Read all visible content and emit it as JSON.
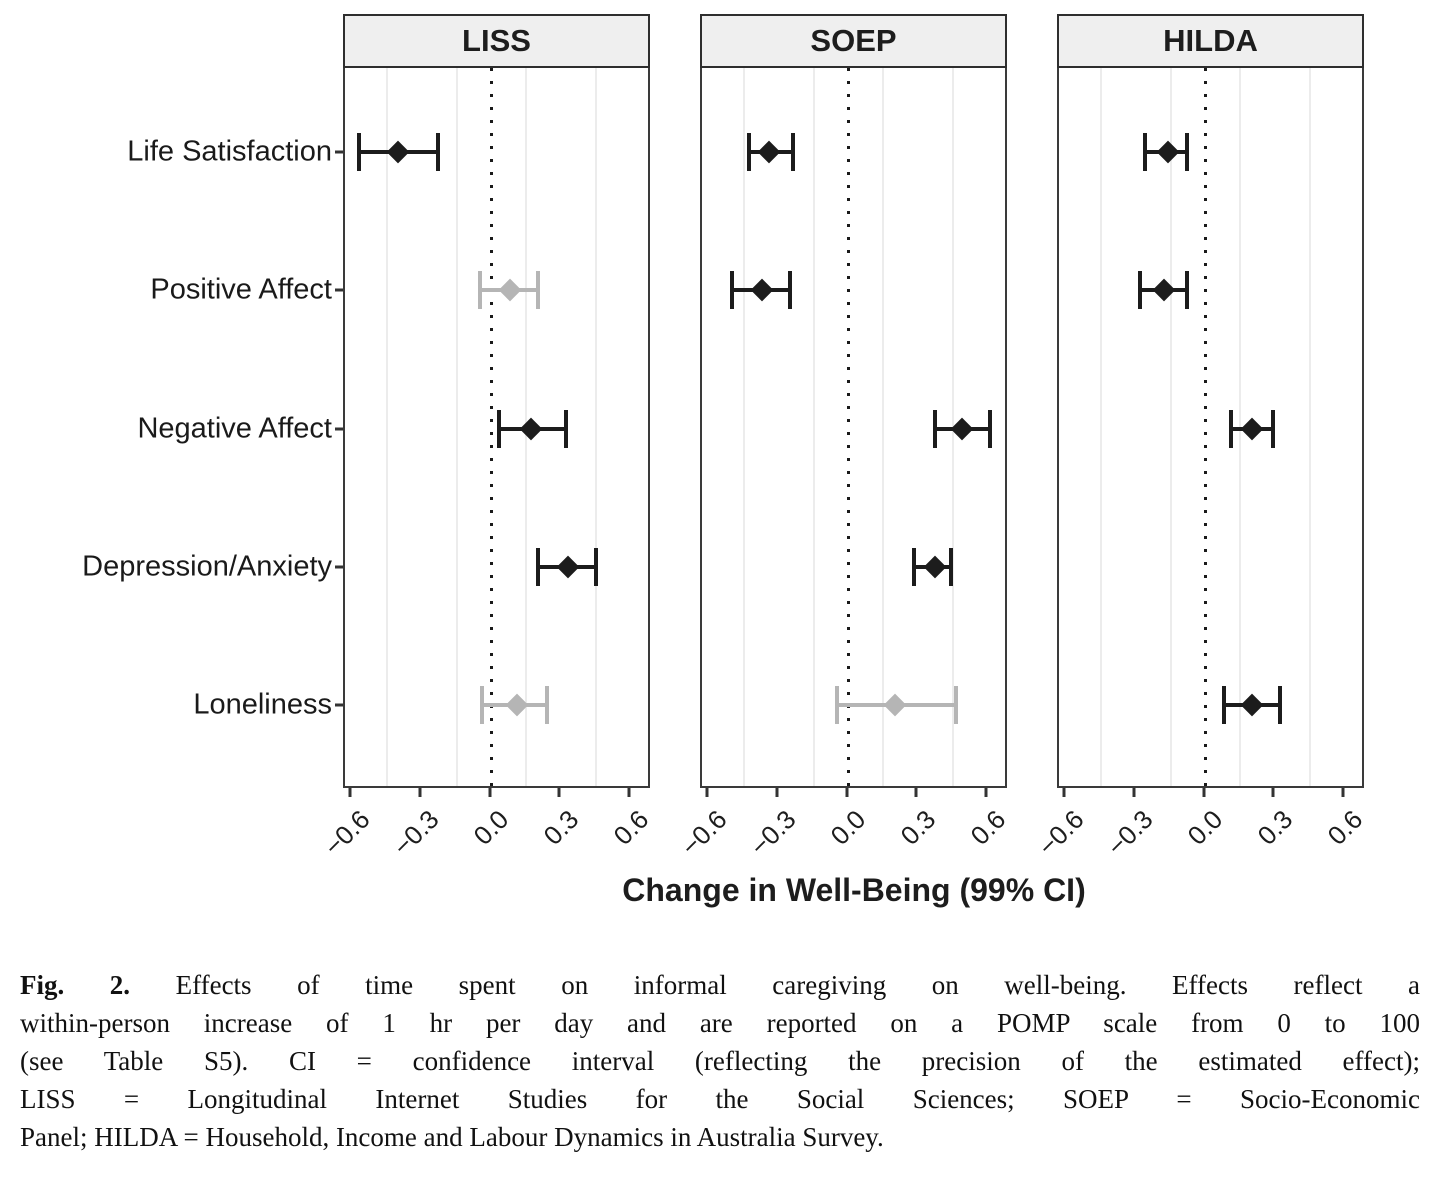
{
  "chart_data": {
    "type": "scatter",
    "subtype": "forest-plot-with-99ci-error-bars",
    "title": "",
    "xlabel": "Change in Well-Being (99% CI)",
    "ylabel": "",
    "xlim": [
      -0.63,
      0.69
    ],
    "x_ticks": {
      "labels": [
        "−0.6",
        "−0.3",
        "0.0",
        "0.3",
        "0.6"
      ],
      "values": [
        -0.6,
        -0.3,
        0.0,
        0.3,
        0.6
      ]
    },
    "minor_gridlines_x": [
      -0.45,
      -0.15,
      0.15,
      0.45
    ],
    "zero_reference_line": 0,
    "legend": "none",
    "outcomes": [
      "Life Satisfaction",
      "Positive Affect",
      "Negative Affect",
      "Depression/Anxiety",
      "Loneliness"
    ],
    "panels": [
      {
        "label": "LISS",
        "points": [
          {
            "outcome": "Life Satisfaction",
            "estimate": -0.4,
            "ci_low": -0.57,
            "ci_high": -0.23,
            "significant": true
          },
          {
            "outcome": "Positive Affect",
            "estimate": 0.08,
            "ci_low": -0.05,
            "ci_high": 0.2,
            "significant": false
          },
          {
            "outcome": "Negative Affect",
            "estimate": 0.17,
            "ci_low": 0.03,
            "ci_high": 0.32,
            "significant": true
          },
          {
            "outcome": "Depression/Anxiety",
            "estimate": 0.33,
            "ci_low": 0.2,
            "ci_high": 0.45,
            "significant": true
          },
          {
            "outcome": "Loneliness",
            "estimate": 0.11,
            "ci_low": -0.04,
            "ci_high": 0.24,
            "significant": false
          }
        ]
      },
      {
        "label": "SOEP",
        "points": [
          {
            "outcome": "Life Satisfaction",
            "estimate": -0.34,
            "ci_low": -0.43,
            "ci_high": -0.24,
            "significant": true
          },
          {
            "outcome": "Positive Affect",
            "estimate": -0.37,
            "ci_low": -0.5,
            "ci_high": -0.25,
            "significant": true
          },
          {
            "outcome": "Negative Affect",
            "estimate": 0.49,
            "ci_low": 0.37,
            "ci_high": 0.61,
            "significant": true
          },
          {
            "outcome": "Depression/Anxiety",
            "estimate": 0.37,
            "ci_low": 0.28,
            "ci_high": 0.44,
            "significant": true
          },
          {
            "outcome": "Loneliness",
            "estimate": 0.2,
            "ci_low": -0.05,
            "ci_high": 0.46,
            "significant": false
          }
        ]
      },
      {
        "label": "HILDA",
        "points": [
          {
            "outcome": "Life Satisfaction",
            "estimate": -0.16,
            "ci_low": -0.26,
            "ci_high": -0.08,
            "significant": true
          },
          {
            "outcome": "Positive Affect",
            "estimate": -0.18,
            "ci_low": -0.28,
            "ci_high": -0.08,
            "significant": true
          },
          {
            "outcome": "Negative Affect",
            "estimate": 0.2,
            "ci_low": 0.11,
            "ci_high": 0.29,
            "significant": true
          },
          {
            "outcome": "Depression/Anxiety",
            "estimate": null,
            "ci_low": null,
            "ci_high": null,
            "significant": null
          },
          {
            "outcome": "Loneliness",
            "estimate": 0.2,
            "ci_low": 0.08,
            "ci_high": 0.32,
            "significant": true
          }
        ]
      }
    ],
    "colors": {
      "significant": "#1c1c1c",
      "nonsignificant": "#b5b5b5"
    }
  },
  "caption": {
    "prefix": "Fig. 2.",
    "lines": [
      "Effects of time spent on informal caregiving on well-being. Effects reflect a",
      "within-person increase of 1 hr per day and are reported on a POMP scale from 0 to 100",
      "(see Table S5). CI = confidence interval (reflecting the precision of the estimated effect);",
      "LISS = Longitudinal Internet Studies for the Social Sciences; SOEP = Socio-Economic",
      "Panel; HILDA = Household, Income and Labour Dynamics in Australia Survey."
    ]
  }
}
